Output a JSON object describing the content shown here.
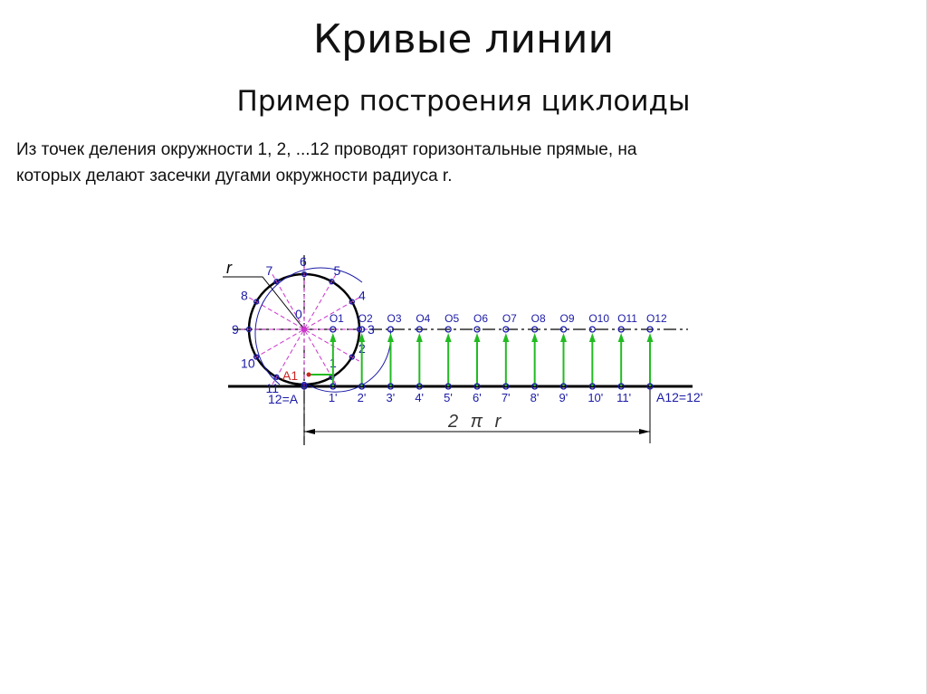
{
  "slide": {
    "title": "Кривые линии",
    "subtitle": "Пример построения циклоиды",
    "body_line1": "Из точек деления окружности 1, 2, ...12 проводят горизонтальные прямые, на",
    "body_line2": "которых делают засечки дугами окружности радиуса r."
  },
  "diagram": {
    "radius_label": "r",
    "center_label": "0",
    "start_label": "12=A",
    "a1_label": "A1",
    "end_label": "A12=12'",
    "dimension_label": "2 π r",
    "circle_points": [
      "1",
      "2",
      "3",
      "4",
      "5",
      "6",
      "7",
      "8",
      "9",
      "10",
      "11"
    ],
    "centers": [
      "O1",
      "O2",
      "O3",
      "O4",
      "O5",
      "O6",
      "O7",
      "O8",
      "O9",
      "O10",
      "O11",
      "O12"
    ],
    "base_points": [
      "1'",
      "2'",
      "3'",
      "4'",
      "5'",
      "6'",
      "7'",
      "8'",
      "9'",
      "10'",
      "11'"
    ],
    "colors": {
      "line": "#000000",
      "construction": "#cc33cc",
      "points": "#1a1aa6",
      "arrows": "#22bb22",
      "a1": "#cc2222"
    }
  }
}
